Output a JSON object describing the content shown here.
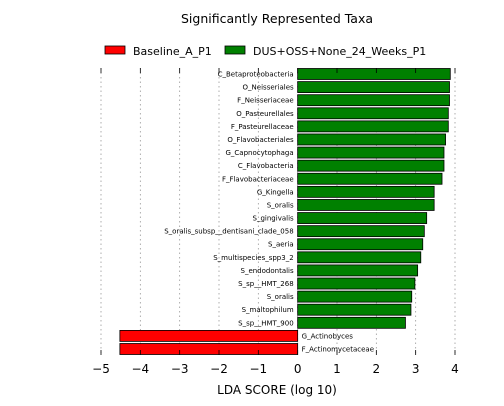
{
  "chart_data": {
    "type": "bar",
    "orientation": "horizontal",
    "title": "Significantly Represented Taxa",
    "xlabel": "LDA SCORE (log 10)",
    "ylabel": "",
    "xlim": [
      -5,
      4
    ],
    "xticks": [
      -5,
      -4,
      -3,
      -2,
      -1,
      0,
      1,
      2,
      3,
      4
    ],
    "grid": "vertical-dotted",
    "legend": {
      "placement": "top",
      "entries": [
        {
          "name": "Baseline_A_P1",
          "color": "#ff0000"
        },
        {
          "name": "DUS+OSS+None_24_Weeks_P1",
          "color": "#008000"
        }
      ]
    },
    "bars": [
      {
        "label": "C_Betaproteobacteria",
        "value": 3.88,
        "group": "DUS+OSS+None_24_Weeks_P1"
      },
      {
        "label": "O_Neisseriales",
        "value": 3.86,
        "group": "DUS+OSS+None_24_Weeks_P1"
      },
      {
        "label": "F_Neisseriaceae",
        "value": 3.86,
        "group": "DUS+OSS+None_24_Weeks_P1"
      },
      {
        "label": "O_Pasteurellales",
        "value": 3.83,
        "group": "DUS+OSS+None_24_Weeks_P1"
      },
      {
        "label": "F_Pasteurellaceae",
        "value": 3.83,
        "group": "DUS+OSS+None_24_Weeks_P1"
      },
      {
        "label": "O_Flavobacteriales",
        "value": 3.76,
        "group": "DUS+OSS+None_24_Weeks_P1"
      },
      {
        "label": "G_Capnocytophaga",
        "value": 3.72,
        "group": "DUS+OSS+None_24_Weeks_P1"
      },
      {
        "label": "C_Flavobacteria",
        "value": 3.72,
        "group": "DUS+OSS+None_24_Weeks_P1"
      },
      {
        "label": "F_Flavobacteriaceae",
        "value": 3.67,
        "group": "DUS+OSS+None_24_Weeks_P1"
      },
      {
        "label": "G_Kingella",
        "value": 3.47,
        "group": "DUS+OSS+None_24_Weeks_P1"
      },
      {
        "label": "S_oralis",
        "value": 3.47,
        "group": "DUS+OSS+None_24_Weeks_P1"
      },
      {
        "label": "S_gingivalis",
        "value": 3.28,
        "group": "DUS+OSS+None_24_Weeks_P1"
      },
      {
        "label": "S_oralis_subsp__dentisani_clade_058",
        "value": 3.22,
        "group": "DUS+OSS+None_24_Weeks_P1"
      },
      {
        "label": "S_aeria",
        "value": 3.18,
        "group": "DUS+OSS+None_24_Weeks_P1"
      },
      {
        "label": "S_multispecies_spp3_2",
        "value": 3.13,
        "group": "DUS+OSS+None_24_Weeks_P1"
      },
      {
        "label": "S_endodontalis",
        "value": 3.05,
        "group": "DUS+OSS+None_24_Weeks_P1"
      },
      {
        "label": "S_sp__HMT_268",
        "value": 2.98,
        "group": "DUS+OSS+None_24_Weeks_P1"
      },
      {
        "label": "S_oralis",
        "value": 2.9,
        "group": "DUS+OSS+None_24_Weeks_P1"
      },
      {
        "label": "S_maltophilum",
        "value": 2.88,
        "group": "DUS+OSS+None_24_Weeks_P1"
      },
      {
        "label": "S_sp__HMT_900",
        "value": 2.74,
        "group": "DUS+OSS+None_24_Weeks_P1"
      },
      {
        "label": "G_Actinobyces",
        "value": -4.52,
        "group": "Baseline_A_P1"
      },
      {
        "label": "F_Actinomycetaceae",
        "value": -4.52,
        "group": "Baseline_A_P1"
      }
    ]
  }
}
